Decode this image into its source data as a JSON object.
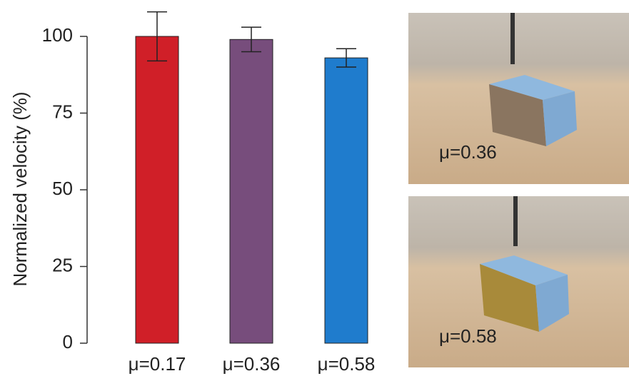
{
  "chart_data": {
    "type": "bar",
    "y_label": "Normalized velocity (%)",
    "categories": [
      "μ=0.17",
      "μ=0.36",
      "μ=0.58"
    ],
    "values": [
      100,
      99,
      93
    ],
    "errors": [
      8,
      4,
      3
    ],
    "colors": [
      "#d01f28",
      "#774d7c",
      "#1f7ccd"
    ],
    "ylim": [
      0,
      100
    ],
    "yticks": [
      0,
      25,
      50,
      75,
      100
    ]
  },
  "photo_labels": [
    "μ=0.36",
    "μ=0.58"
  ]
}
